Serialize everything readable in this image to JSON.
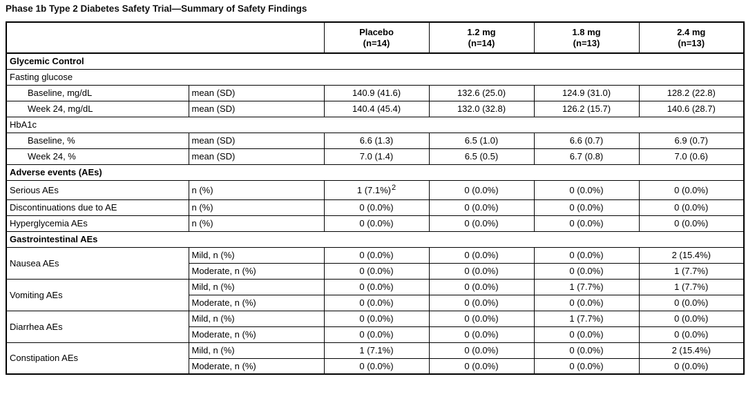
{
  "title": "Phase 1b Type 2 Diabetes Safety Trial—Summary of Safety Findings",
  "table": {
    "columns": [
      {
        "label": "Placebo",
        "n": "(n=14)"
      },
      {
        "label": "1.2 mg",
        "n": "(n=14)"
      },
      {
        "label": "1.8 mg",
        "n": "(n=13)"
      },
      {
        "label": "2.4 mg",
        "n": "(n=13)"
      }
    ],
    "rows": [
      {
        "type": "section",
        "label": "Glycemic Control"
      },
      {
        "type": "subsection",
        "label": "Fasting glucose"
      },
      {
        "type": "data",
        "indent": true,
        "label": "Baseline, mg/dL",
        "stat": "mean (SD)",
        "values": [
          "140.9 (41.6)",
          "132.6 (25.0)",
          "124.9 (31.0)",
          "128.2 (22.8)"
        ]
      },
      {
        "type": "data",
        "indent": true,
        "label": "Week 24, mg/dL",
        "stat": "mean (SD)",
        "values": [
          "140.4 (45.4)",
          "132.0 (32.8)",
          "126.2 (15.7)",
          "140.6 (28.7)"
        ]
      },
      {
        "type": "subsection",
        "label": "HbA1c"
      },
      {
        "type": "data",
        "indent": true,
        "label": "Baseline, %",
        "stat": "mean (SD)",
        "values": [
          "6.6 (1.3)",
          "6.5 (1.0)",
          "6.6 (0.7)",
          "6.9 (0.7)"
        ]
      },
      {
        "type": "data",
        "indent": true,
        "label": "Week 24, %",
        "stat": "mean (SD)",
        "values": [
          "7.0 (1.4)",
          "6.5 (0.5)",
          "6.7 (0.8)",
          "7.0 (0.6)"
        ]
      },
      {
        "type": "section",
        "label": "Adverse events (AEs)"
      },
      {
        "type": "data",
        "tall": true,
        "label": "Serious AEs",
        "stat": "n (%)",
        "values": [
          "1 (7.1%)",
          "0 (0.0%)",
          "0 (0.0%)",
          "0 (0.0%)"
        ],
        "sups": [
          "2",
          null,
          null,
          null
        ]
      },
      {
        "type": "data",
        "label": "Discontinuations due to AE",
        "stat": "n (%)",
        "values": [
          "0 (0.0%)",
          "0 (0.0%)",
          "0 (0.0%)",
          "0 (0.0%)"
        ]
      },
      {
        "type": "data",
        "label": "Hyperglycemia AEs",
        "stat": "n (%)",
        "values": [
          "0 (0.0%)",
          "0 (0.0%)",
          "0 (0.0%)",
          "0 (0.0%)"
        ]
      },
      {
        "type": "section",
        "label": "Gastrointestinal AEs"
      },
      {
        "type": "group",
        "label": "Nausea AEs",
        "subrows": [
          {
            "stat": "Mild, n (%)",
            "values": [
              "0 (0.0%)",
              "0 (0.0%)",
              "0 (0.0%)",
              "2 (15.4%)"
            ]
          },
          {
            "stat": "Moderate, n (%)",
            "values": [
              "0 (0.0%)",
              "0 (0.0%)",
              "0 (0.0%)",
              "1 (7.7%)"
            ]
          }
        ]
      },
      {
        "type": "group",
        "label": "Vomiting AEs",
        "subrows": [
          {
            "stat": "Mild, n (%)",
            "values": [
              "0 (0.0%)",
              "0 (0.0%)",
              "1 (7.7%)",
              "1 (7.7%)"
            ]
          },
          {
            "stat": "Moderate, n (%)",
            "values": [
              "0 (0.0%)",
              "0 (0.0%)",
              "0 (0.0%)",
              "0 (0.0%)"
            ]
          }
        ]
      },
      {
        "type": "group",
        "label": "Diarrhea AEs",
        "subrows": [
          {
            "stat": "Mild, n (%)",
            "values": [
              "0 (0.0%)",
              "0 (0.0%)",
              "1 (7.7%)",
              "0 (0.0%)"
            ]
          },
          {
            "stat": "Moderate, n (%)",
            "values": [
              "0 (0.0%)",
              "0 (0.0%)",
              "0 (0.0%)",
              "0 (0.0%)"
            ]
          }
        ]
      },
      {
        "type": "group",
        "label": "Constipation AEs",
        "subrows": [
          {
            "stat": "Mild, n (%)",
            "values": [
              "1 (7.1%)",
              "0 (0.0%)",
              "0 (0.0%)",
              "2 (15.4%)"
            ]
          },
          {
            "stat": "Moderate, n (%)",
            "values": [
              "0 (0.0%)",
              "0 (0.0%)",
              "0 (0.0%)",
              "0 (0.0%)"
            ]
          }
        ]
      }
    ]
  }
}
